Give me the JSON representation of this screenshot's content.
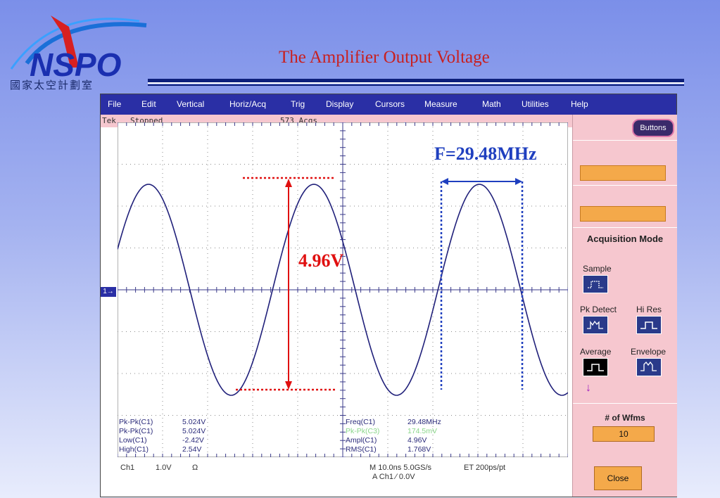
{
  "logo": {
    "name": "NSPO",
    "subtitle": "國家太空計劃室"
  },
  "slide": {
    "title": "The Amplifier Output Voltage"
  },
  "scope": {
    "menu": [
      "File",
      "Edit",
      "Vertical",
      "Horiz/Acq",
      "Trig",
      "Display",
      "Cursors",
      "Measure",
      "Math",
      "Utilities",
      "Help"
    ],
    "status": {
      "brand": "Tek",
      "state": "Stopped",
      "acqs": "573 Acqs"
    },
    "ch_marker": "1",
    "measurements_left": [
      {
        "label": "Pk-Pk(C1)",
        "value": "5.024V"
      },
      {
        "label": "Pk-Pk(C1)",
        "value": "5.024V"
      },
      {
        "label": "Low(C1)",
        "value": "-2.42V"
      },
      {
        "label": "High(C1)",
        "value": "2.54V"
      }
    ],
    "measurements_right": [
      {
        "label": "Freq(C1)",
        "value": "29.48MHz",
        "green": false
      },
      {
        "label": "Pk-Pk(C3)",
        "value": "174.5mV",
        "green": true
      },
      {
        "label": "Ampl(C1)",
        "value": "4.96V",
        "green": false
      },
      {
        "label": "RMS(C1)",
        "value": "1.768V",
        "green": false
      }
    ],
    "bottom": {
      "ch": "Ch1",
      "scale": "1.0V",
      "coupling": "Ω",
      "timebase": "M 10.0ns 5.0GS/s",
      "et": "ET 200ps/pt",
      "trigger": "A  Ch1  ∕  0.0V"
    },
    "sidepanel": {
      "buttons_label": "Buttons",
      "acq_title": "Acquisition Mode",
      "modes": [
        "Sample",
        "Pk Detect",
        "Hi Res",
        "Average",
        "Envelope"
      ],
      "selected_mode": "Average",
      "wfms_label": "# of Wfms",
      "wfms_value": "10",
      "close_label": "Close"
    },
    "annotations": {
      "frequency": "F=29.48MHz",
      "amplitude": "4.96V"
    },
    "colors": {
      "menubar": "#2a2fa5",
      "panel": "#f6c7cf",
      "accent": "#f4a94a",
      "annotation_blue": "#1f3fbf",
      "annotation_red": "#e01010"
    }
  }
}
